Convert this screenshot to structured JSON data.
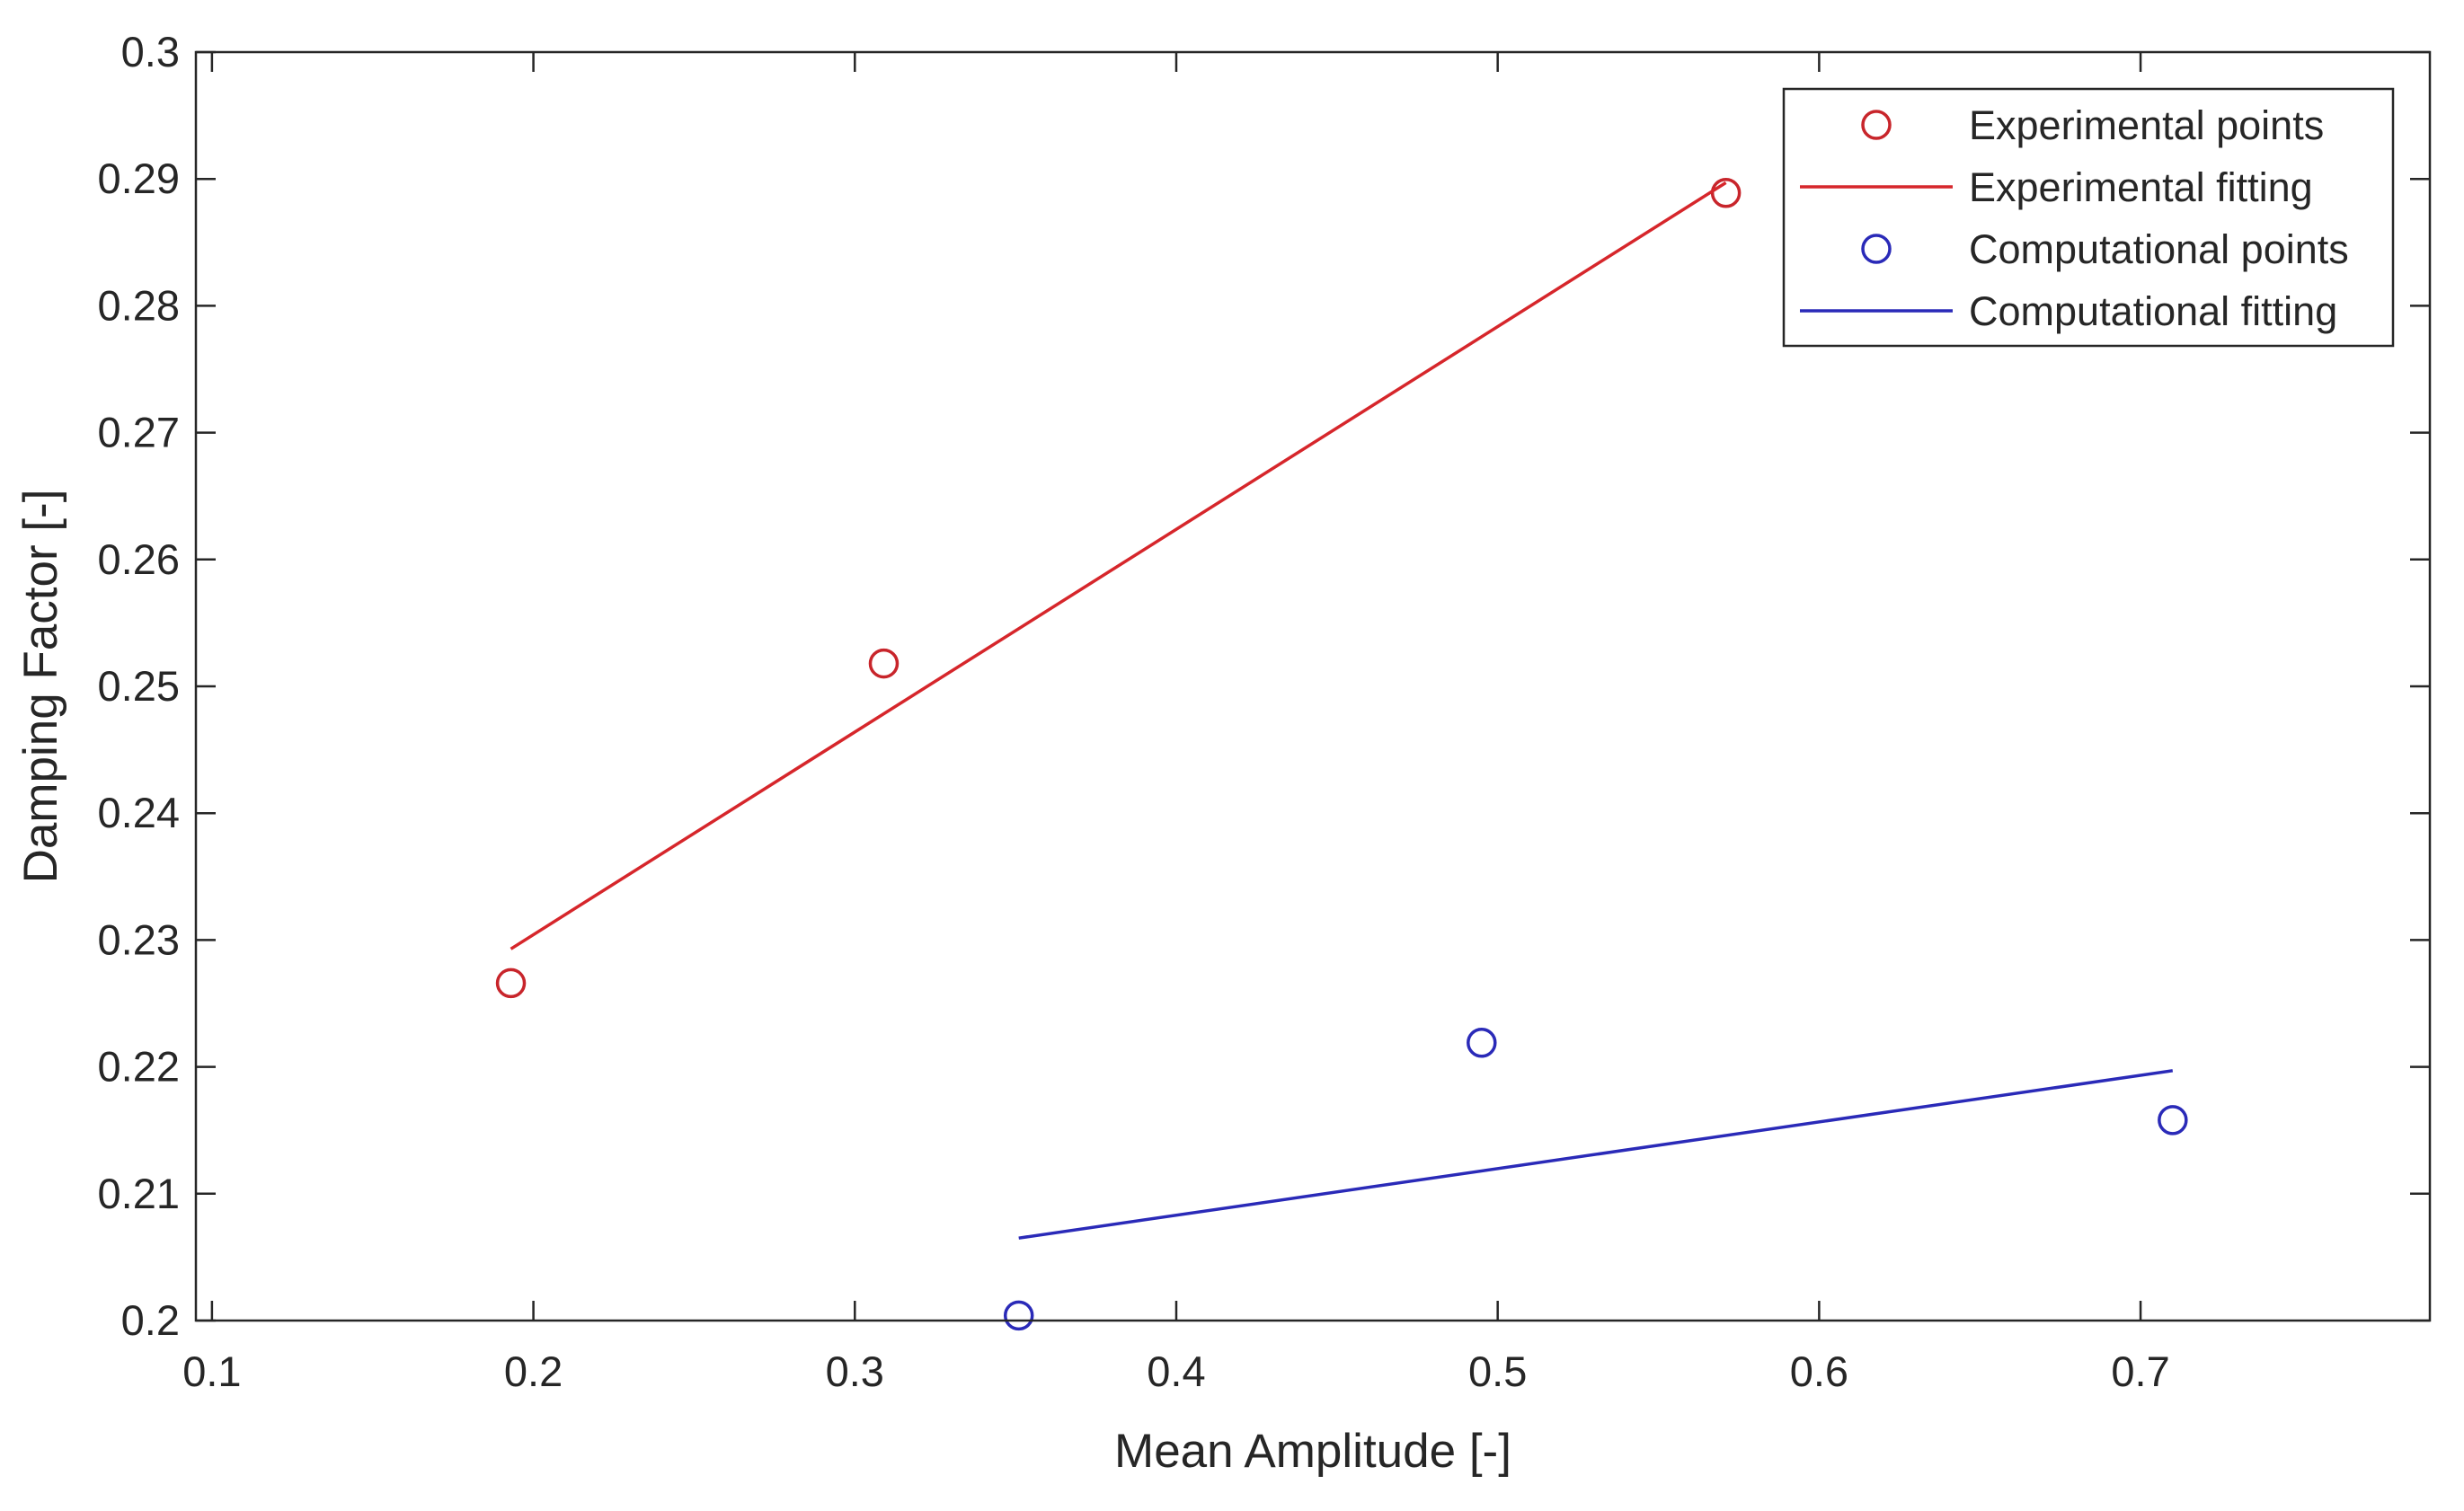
{
  "chart_data": {
    "type": "scatter",
    "title": "",
    "xlabel": "Mean Amplitude [-]",
    "ylabel": "Damping Factor [-]",
    "xlim": [
      0.095,
      0.79
    ],
    "ylim": [
      0.2,
      0.3
    ],
    "xticks": [
      0.1,
      0.2,
      0.3,
      0.4,
      0.5,
      0.6,
      0.7
    ],
    "xtick_labels": [
      "0.1",
      "0.2",
      "0.3",
      "0.4",
      "0.5",
      "0.6",
      "0.7"
    ],
    "yticks": [
      0.2,
      0.21,
      0.22,
      0.23,
      0.24,
      0.25,
      0.26,
      0.27,
      0.28,
      0.29,
      0.3
    ],
    "ytick_labels": [
      "0.2",
      "0.21",
      "0.22",
      "0.23",
      "0.24",
      "0.25",
      "0.26",
      "0.27",
      "0.28",
      "0.29",
      "0.3"
    ],
    "grid": false,
    "legend_position": "top-right",
    "series": [
      {
        "name": "Experimental points",
        "kind": "markers",
        "marker": "circle",
        "color": "#c8252b",
        "x": [
          0.193,
          0.309,
          0.571
        ],
        "y": [
          0.2266,
          0.2518,
          0.2889
        ]
      },
      {
        "name": "Experimental fitting",
        "kind": "line",
        "color": "#d6262b",
        "x": [
          0.193,
          0.571
        ],
        "y": [
          0.2293,
          0.2897
        ]
      },
      {
        "name": "Computational points",
        "kind": "markers",
        "marker": "circle",
        "color": "#2a2ab8",
        "x": [
          0.351,
          0.495,
          0.71
        ],
        "y": [
          0.2004,
          0.2219,
          0.2158
        ]
      },
      {
        "name": "Computational fitting",
        "kind": "line",
        "color": "#2a2ab8",
        "x": [
          0.351,
          0.71
        ],
        "y": [
          0.2065,
          0.2197
        ]
      }
    ]
  }
}
